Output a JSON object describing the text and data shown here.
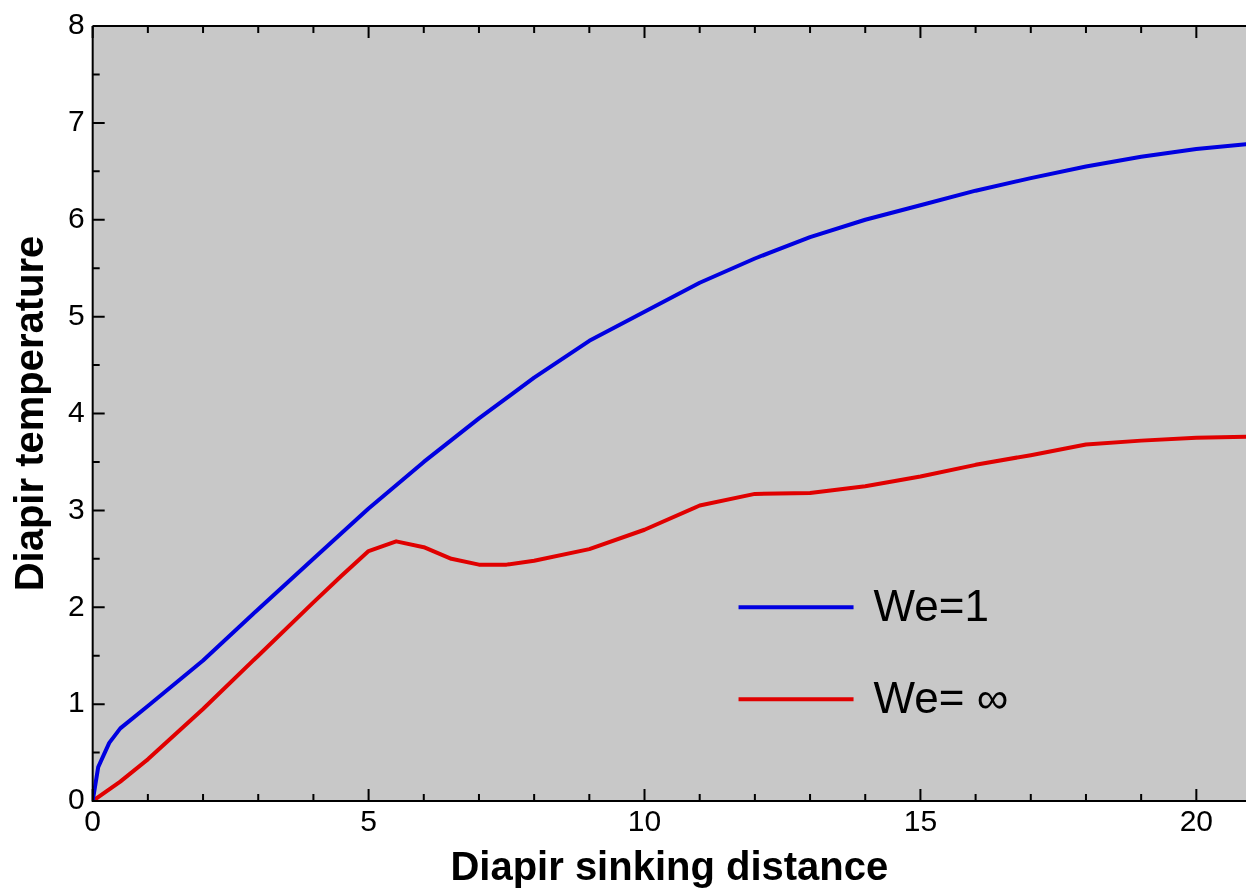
{
  "chart_data": {
    "type": "line",
    "xlabel": "Diapir sinking distance",
    "ylabel": "Diapir temperature",
    "xlim": [
      0,
      20.9
    ],
    "ylim": [
      0,
      8
    ],
    "xticks": [
      0,
      5,
      10,
      15,
      20
    ],
    "yticks": [
      0,
      1,
      2,
      3,
      4,
      5,
      6,
      7,
      8
    ],
    "grid": false,
    "legend": "bottom right",
    "marker": "none",
    "line_style": "solid",
    "series": [
      {
        "name": "We=1",
        "color": "#0000e0",
        "x": [
          0,
          0.1,
          0.3,
          0.5,
          1,
          2,
          3,
          4,
          5,
          6,
          7,
          8,
          9,
          10,
          11,
          12,
          13,
          14,
          15,
          16,
          17,
          18,
          19,
          20,
          20.9
        ],
        "values": [
          0,
          0.35,
          0.6,
          0.75,
          0.98,
          1.45,
          1.98,
          2.5,
          3.02,
          3.5,
          3.95,
          4.37,
          4.75,
          5.05,
          5.35,
          5.6,
          5.82,
          6.0,
          6.15,
          6.3,
          6.43,
          6.55,
          6.65,
          6.73,
          6.78
        ]
      },
      {
        "name": "We= ∞",
        "color": "#e00000",
        "x": [
          0,
          0.5,
          1,
          2,
          3,
          4,
          4.5,
          5,
          5.5,
          6,
          6.5,
          7,
          7.5,
          8,
          9,
          10,
          11,
          12,
          13,
          14,
          15,
          16,
          17,
          18,
          19,
          20,
          20.9
        ],
        "values": [
          0,
          0.2,
          0.43,
          0.95,
          1.5,
          2.05,
          2.32,
          2.58,
          2.68,
          2.62,
          2.5,
          2.44,
          2.44,
          2.48,
          2.6,
          2.8,
          3.05,
          3.17,
          3.18,
          3.25,
          3.35,
          3.47,
          3.57,
          3.68,
          3.72,
          3.75,
          3.76
        ]
      }
    ]
  }
}
